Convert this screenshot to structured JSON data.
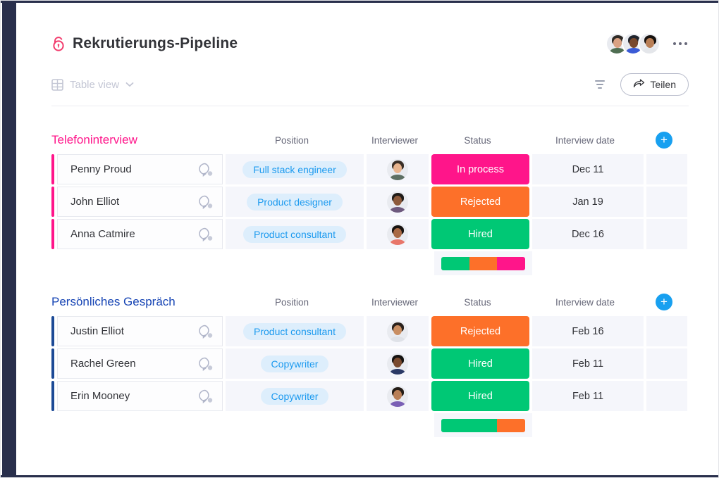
{
  "header": {
    "title": "Rekrutierungs-Pipeline",
    "avatars": [
      {
        "hair": "#2e2a26",
        "skin": "#d9a183",
        "shirt": "#4f6e52"
      },
      {
        "hair": "#20252e",
        "skin": "#7a4a2e",
        "shirt": "#3b5bd6"
      },
      {
        "hair": "#17120f",
        "skin": "#b97f57",
        "shirt": "#e4e6ea"
      }
    ]
  },
  "toolbar": {
    "view_label": "Table view",
    "share_label": "Teilen"
  },
  "columns": [
    "Position",
    "Interviewer",
    "Status",
    "Interview date"
  ],
  "colors": {
    "navy_frame": "#292f4c",
    "in_process": "#ff158a",
    "rejected": "#fd7029",
    "hired": "#00c875",
    "add_button_blue": "#18a0f0",
    "position_pill_text": "#1c9aef"
  },
  "groups": [
    {
      "title": "Telefoninterview",
      "color": "#ff158a",
      "title_color": "#ff158a",
      "rows": [
        {
          "name": "Penny Proud",
          "position": "Full stack engineer",
          "status": "In process",
          "status_color": "#ff158a",
          "date": "Dec 11",
          "avatar": {
            "hair": "#3a2e26",
            "skin": "#e8b48e",
            "shirt": "#5d6f63"
          }
        },
        {
          "name": "John Elliot",
          "position": "Product designer",
          "status": "Rejected",
          "status_color": "#fd7029",
          "date": "Jan 19",
          "avatar": {
            "hair": "#1f1b18",
            "skin": "#8d5a3b",
            "shirt": "#6e5a7e"
          }
        },
        {
          "name": "Anna Catmire",
          "position": "Product consultant",
          "status": "Hired",
          "status_color": "#00c875",
          "date": "Dec 16",
          "avatar": {
            "hair": "#17120f",
            "skin": "#a96a45",
            "shirt": "#e8766a"
          }
        }
      ],
      "summary": [
        {
          "color": "#00c875",
          "pct": 33.3
        },
        {
          "color": "#fd7029",
          "pct": 33.3
        },
        {
          "color": "#ff158a",
          "pct": 33.4
        }
      ]
    },
    {
      "title": "Persönliches Gespräch",
      "color": "#1c4a96",
      "title_color": "#1644b4",
      "rows": [
        {
          "name": "Justin Elliot",
          "position": "Product consultant",
          "status": "Rejected",
          "status_color": "#fd7029",
          "date": "Feb 16",
          "avatar": {
            "hair": "#2a211c",
            "skin": "#c98e62",
            "shirt": "#dfe2e8"
          }
        },
        {
          "name": "Rachel Green",
          "position": "Copywriter",
          "status": "Hired",
          "status_color": "#00c875",
          "date": "Feb 11",
          "avatar": {
            "hair": "#141210",
            "skin": "#7a4a2e",
            "shirt": "#2b3a66"
          }
        },
        {
          "name": "Erin Mooney",
          "position": "Copywriter",
          "status": "Hired",
          "status_color": "#00c875",
          "date": "Feb 11",
          "avatar": {
            "hair": "#241c16",
            "skin": "#b97f57",
            "shirt": "#7a5fb5"
          }
        }
      ],
      "summary": [
        {
          "color": "#00c875",
          "pct": 66.7
        },
        {
          "color": "#fd7029",
          "pct": 33.3
        }
      ]
    }
  ]
}
